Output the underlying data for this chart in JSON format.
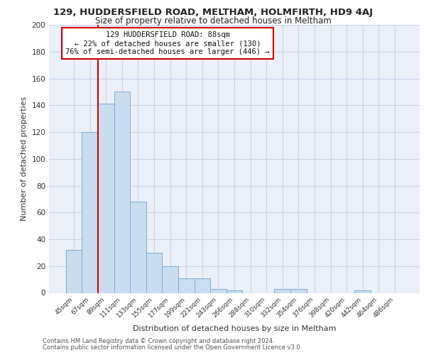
{
  "title": "129, HUDDERSFIELD ROAD, MELTHAM, HOLMFIRTH, HD9 4AJ",
  "subtitle": "Size of property relative to detached houses in Meltham",
  "xlabel": "Distribution of detached houses by size in Meltham",
  "ylabel": "Number of detached properties",
  "bar_labels": [
    "45sqm",
    "67sqm",
    "89sqm",
    "111sqm",
    "133sqm",
    "155sqm",
    "177sqm",
    "199sqm",
    "221sqm",
    "243sqm",
    "266sqm",
    "288sqm",
    "310sqm",
    "332sqm",
    "354sqm",
    "376sqm",
    "398sqm",
    "420sqm",
    "442sqm",
    "464sqm",
    "486sqm"
  ],
  "bar_values": [
    32,
    120,
    141,
    150,
    68,
    30,
    20,
    11,
    11,
    3,
    2,
    0,
    0,
    3,
    3,
    0,
    0,
    0,
    2,
    0,
    0
  ],
  "bar_color": "#c9ddf1",
  "bar_edgecolor": "#7aacd6",
  "vline_color": "#cc0000",
  "vline_index": 2,
  "ylim": [
    0,
    200
  ],
  "yticks": [
    0,
    20,
    40,
    60,
    80,
    100,
    120,
    140,
    160,
    180,
    200
  ],
  "annotation_text_line1": "129 HUDDERSFIELD ROAD: 88sqm",
  "annotation_text_line2": "← 22% of detached houses are smaller (130)",
  "annotation_text_line3": "76% of semi-detached houses are larger (446) →",
  "footer_line1": "Contains HM Land Registry data © Crown copyright and database right 2024.",
  "footer_line2": "Contains public sector information licensed under the Open Government Licence v3.0.",
  "grid_color": "#c8d4e8",
  "bg_color": "#eaeff8",
  "title_fontsize": 9.5,
  "subtitle_fontsize": 8.5,
  "axis_label_fontsize": 8.0,
  "tick_fontsize": 7.5,
  "xtick_fontsize": 6.5,
  "footer_fontsize": 6.0
}
